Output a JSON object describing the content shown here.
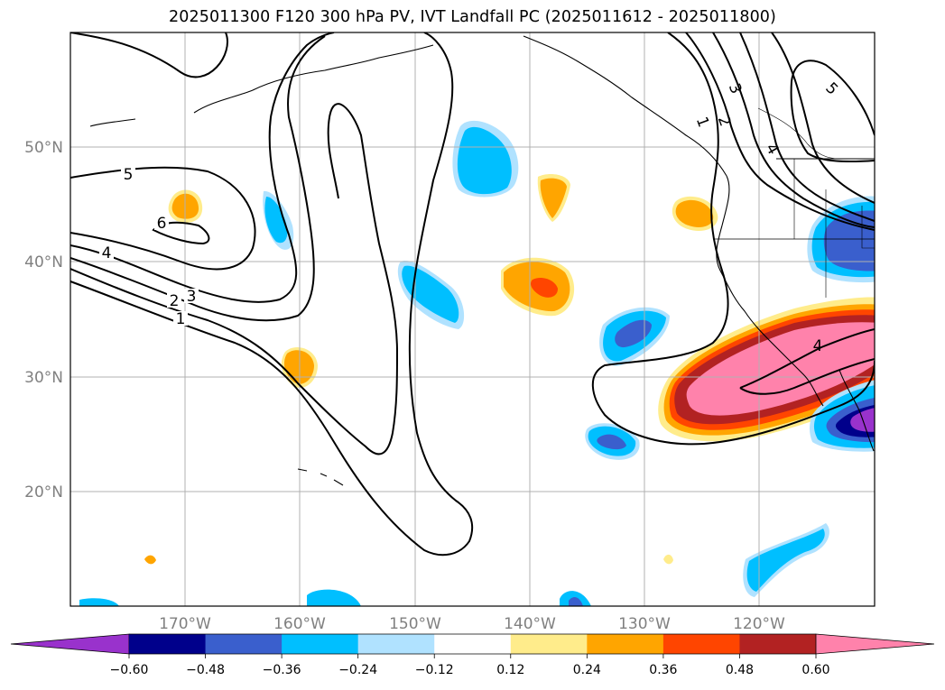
{
  "title": "2025011300 F120 300 hPa PV, IVT Landfall PC (2025011612 - 2025011800)",
  "map": {
    "lat_labels": [
      "50°N",
      "40°N",
      "30°N",
      "20°N"
    ],
    "lon_labels": [
      "170°W",
      "160°W",
      "150°W",
      "140°W",
      "130°W",
      "120°W"
    ],
    "contour_labels": [
      "5",
      "6",
      "4",
      "3",
      "2",
      "1",
      "3",
      "2",
      "1",
      "4",
      "5",
      "4"
    ]
  },
  "colorbar": {
    "ticks": [
      "−0.60",
      "−0.48",
      "−0.36",
      "−0.24",
      "−0.12",
      "0.12",
      "0.24",
      "0.36",
      "0.48",
      "0.60"
    ],
    "colors": [
      "#9932cc",
      "#00008b",
      "#3a5fcd",
      "#00bfff",
      "#b0e2ff",
      "#ffffff",
      "#ffec8b",
      "#ffa500",
      "#ff4500",
      "#b22222",
      "#ff82ab"
    ]
  }
}
